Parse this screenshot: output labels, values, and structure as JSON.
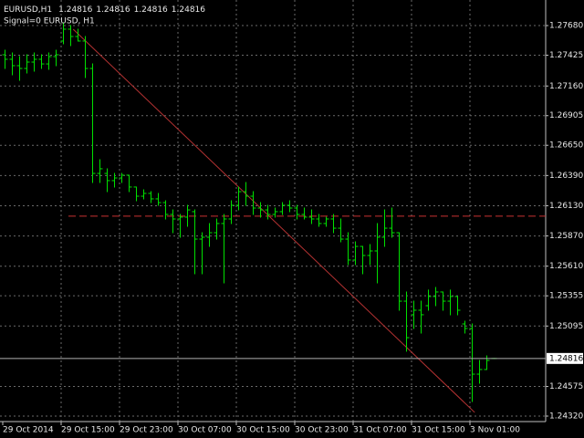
{
  "chart_data": {
    "type": "ohlc",
    "symbol": "EURUSD,H1",
    "indicator_label": "Signal=0 EURUSD, H1",
    "categories": [
      "29 Oct 2014",
      null,
      null,
      null,
      null,
      null,
      null,
      null,
      "29 Oct 15:00",
      null,
      null,
      null,
      null,
      null,
      null,
      null,
      "29 Oct 23:00",
      null,
      null,
      null,
      null,
      null,
      null,
      null,
      "30 Oct 07:00",
      null,
      null,
      null,
      null,
      null,
      null,
      null,
      "30 Oct 15:00",
      null,
      null,
      null,
      null,
      null,
      null,
      null,
      "30 Oct 23:00",
      null,
      null,
      null,
      null,
      null,
      null,
      null,
      "31 Oct 07:00",
      null,
      null,
      null,
      null,
      null,
      null,
      null,
      "31 Oct 15:00",
      null,
      null,
      null,
      null,
      null,
      null,
      null,
      "3 Nov 01:00",
      null,
      null,
      null
    ],
    "open": [
      1.27429,
      1.2739,
      1.27335,
      1.27311,
      1.27366,
      1.2739,
      1.2735,
      1.27413,
      1.27547,
      1.27649,
      1.27586,
      1.27547,
      1.27311,
      1.26408,
      1.26408,
      1.26346,
      1.26369,
      1.26393,
      1.26291,
      1.26212,
      1.26236,
      1.26189,
      1.26157,
      1.26055,
      1.26016,
      1.26032,
      1.26079,
      1.25843,
      1.25859,
      1.25898,
      1.25977,
      1.26016,
      1.26134,
      1.26251,
      1.26212,
      1.2611,
      1.26094,
      1.26055,
      1.26079,
      1.26134,
      1.2611,
      1.26055,
      1.26032,
      1.26016,
      1.25977,
      1.26016,
      1.25937,
      1.25843,
      1.25663,
      1.2578,
      1.25702,
      1.25741,
      1.25859,
      1.25937,
      1.25898,
      1.25309,
      1.25192,
      1.25231,
      1.2527,
      1.25349,
      1.25388,
      1.25309,
      1.25349,
      1.25113,
      1.25074,
      1.24681,
      1.24721,
      1.24816
    ],
    "high": [
      1.27468,
      1.27445,
      1.27413,
      1.27429,
      1.27445,
      1.27429,
      1.27445,
      1.27468,
      1.27704,
      1.2768,
      1.27649,
      1.27586,
      1.2735,
      1.26526,
      1.26448,
      1.26408,
      1.26408,
      1.26393,
      1.26291,
      1.26267,
      1.26251,
      1.26236,
      1.26173,
      1.26094,
      1.26055,
      1.26134,
      1.26094,
      1.25898,
      1.25977,
      1.26016,
      1.26055,
      1.26173,
      1.26291,
      1.2633,
      1.26251,
      1.26157,
      1.26134,
      1.2611,
      1.26157,
      1.26173,
      1.26134,
      1.2611,
      1.26094,
      1.26055,
      1.26032,
      1.26055,
      1.26016,
      1.25898,
      1.2582,
      1.2578,
      1.25796,
      1.25977,
      1.26094,
      1.2611,
      1.25898,
      1.25388,
      1.25309,
      1.25309,
      1.25404,
      1.25427,
      1.25388,
      1.25404,
      1.25349,
      1.25137,
      1.25113,
      1.24799,
      1.24838,
      1.24816
    ],
    "low": [
      1.27311,
      1.27256,
      1.27209,
      1.27272,
      1.27288,
      1.27311,
      1.27303,
      1.27335,
      1.27523,
      1.27507,
      1.27547,
      1.27233,
      1.2633,
      1.2633,
      1.26251,
      1.26291,
      1.2633,
      1.26251,
      1.26173,
      1.26189,
      1.26157,
      1.26134,
      1.26016,
      1.25898,
      1.25859,
      1.25953,
      1.25545,
      1.25545,
      1.2578,
      1.25843,
      1.25466,
      1.25977,
      1.26094,
      1.26134,
      1.26055,
      1.26032,
      1.26016,
      1.26032,
      1.26055,
      1.26079,
      1.26016,
      1.26016,
      1.25977,
      1.25953,
      1.25953,
      1.25898,
      1.2582,
      1.25623,
      1.25623,
      1.25545,
      1.25623,
      1.25466,
      1.2578,
      1.25859,
      1.25231,
      1.24878,
      1.25074,
      1.25035,
      1.25231,
      1.2527,
      1.25231,
      1.25192,
      1.25192,
      1.25035,
      1.24446,
      1.24603,
      1.24721,
      1.24816
    ],
    "close": [
      1.2739,
      1.27335,
      1.27311,
      1.27366,
      1.2739,
      1.2735,
      1.27413,
      1.27429,
      1.27649,
      1.27586,
      1.27547,
      1.27311,
      1.26408,
      1.26448,
      1.26346,
      1.26369,
      1.26393,
      1.26291,
      1.26212,
      1.26236,
      1.26189,
      1.26157,
      1.26055,
      1.26016,
      1.26032,
      1.26094,
      1.25843,
      1.25859,
      1.25898,
      1.25977,
      1.26016,
      1.26134,
      1.26251,
      1.26212,
      1.2611,
      1.26094,
      1.26055,
      1.26079,
      1.26134,
      1.2611,
      1.26055,
      1.26032,
      1.26016,
      1.25977,
      1.26016,
      1.25937,
      1.25843,
      1.25663,
      1.2578,
      1.25702,
      1.25741,
      1.25859,
      1.25937,
      1.25898,
      1.25309,
      1.24995,
      1.25231,
      1.25192,
      1.25349,
      1.25388,
      1.25309,
      1.25349,
      1.25231,
      1.25074,
      1.24681,
      1.24721,
      1.24799,
      1.24816
    ],
    "color": "#00e000",
    "ylim": [
      1.24273,
      1.279
    ],
    "yticks": [
      {
        "value": 1.2768,
        "label": "1.27680"
      },
      1.27425,
      {
        "value": 1.2716,
        "label": "1.27160"
      },
      1.26905,
      {
        "value": 1.2665,
        "label": "1.26650"
      },
      {
        "value": 1.2639,
        "label": "1.26390"
      },
      {
        "value": 1.2613,
        "label": "1.26130"
      },
      {
        "value": 1.2587,
        "label": "1.25870"
      },
      {
        "value": 1.2561,
        "label": "1.25610"
      },
      1.25355,
      1.25095,
      1.24575,
      {
        "value": 1.2432,
        "label": "1.24320"
      }
    ],
    "grid": true,
    "trend_line": {
      "x": [
        9.4,
        64.4
      ],
      "values": [
        1.27649,
        1.24352
      ],
      "color": "#b43232"
    },
    "level_line": {
      "x_from": 8.75,
      "value": 1.2604,
      "color": "#c83232"
    }
  }
}
